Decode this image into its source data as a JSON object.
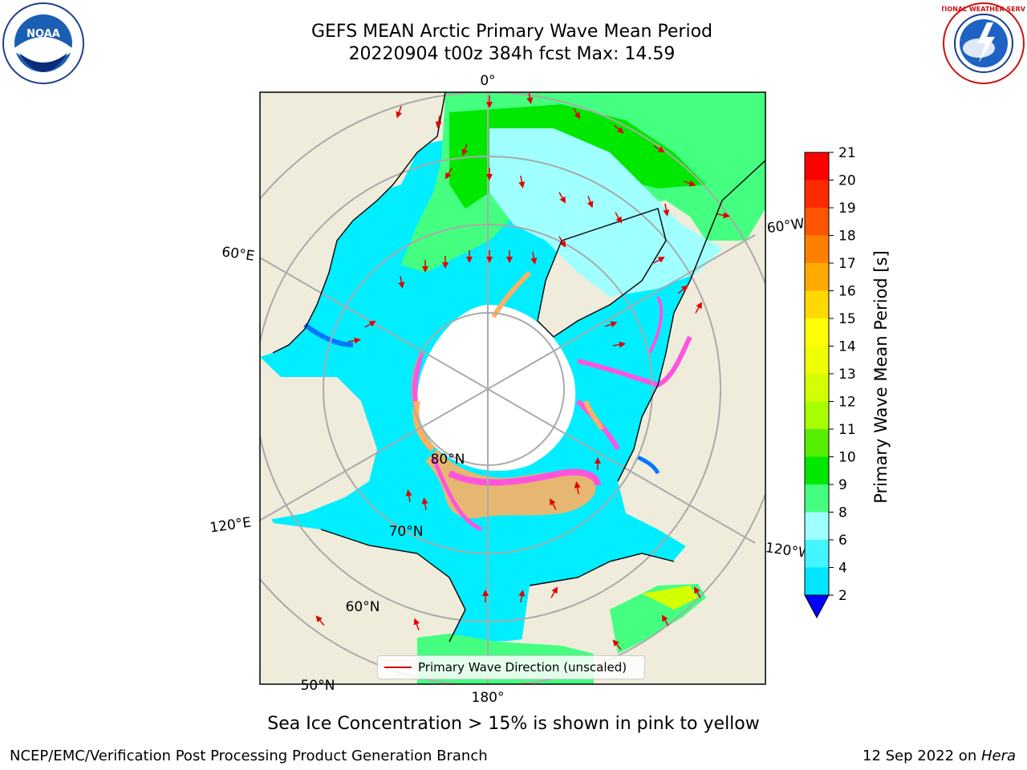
{
  "title": {
    "line1": "GEFS MEAN Arctic Primary Wave Mean Period",
    "line2": "20220904 t00z 384h fcst   Max: 14.59"
  },
  "logos": {
    "left": "noaa-logo",
    "left_text": "NOAA",
    "right": "national-weather-service-logo",
    "right_text": "NATIONAL WEATHER SERVICE"
  },
  "map": {
    "projection": "north-polar-stereographic",
    "lon_labels": [
      "0°",
      "60°E",
      "120°E",
      "180°",
      "120°W",
      "60°W"
    ],
    "lat_labels": [
      "80°N",
      "70°N",
      "60°N",
      "50°N"
    ],
    "legend_label": "Primary Wave Direction (unscaled)",
    "colors": {
      "land": "#efecdc",
      "ice_pink": "#ff55dd",
      "ice_orange": "#ffb060",
      "arrow": "#e00000",
      "grid": "#aaaaaa"
    }
  },
  "colorbar": {
    "label": "Primary Wave Mean Period [s]",
    "ticks": [
      "2",
      "4",
      "6",
      "8",
      "9",
      "10",
      "11",
      "12",
      "13",
      "14",
      "15",
      "16",
      "17",
      "18",
      "19",
      "20",
      "21"
    ],
    "colors": [
      "#0077ff",
      "#00e5ff",
      "#44f4ff",
      "#a0ffff",
      "#44ff80",
      "#00e800",
      "#55ee00",
      "#a8ff00",
      "#d4ff00",
      "#f0ff00",
      "#ffff00",
      "#ffd800",
      "#ffaa00",
      "#ff8000",
      "#ff5500",
      "#ff2a00",
      "#ff0000"
    ],
    "under_color": "#0000ff"
  },
  "subtitle": "Sea Ice Concentration > 15% is shown in pink to yellow",
  "footer": {
    "left": "NCEP/EMC/Verification Post Processing Product Generation Branch",
    "right_date": "12 Sep 2022 on ",
    "right_host": "Hera"
  }
}
